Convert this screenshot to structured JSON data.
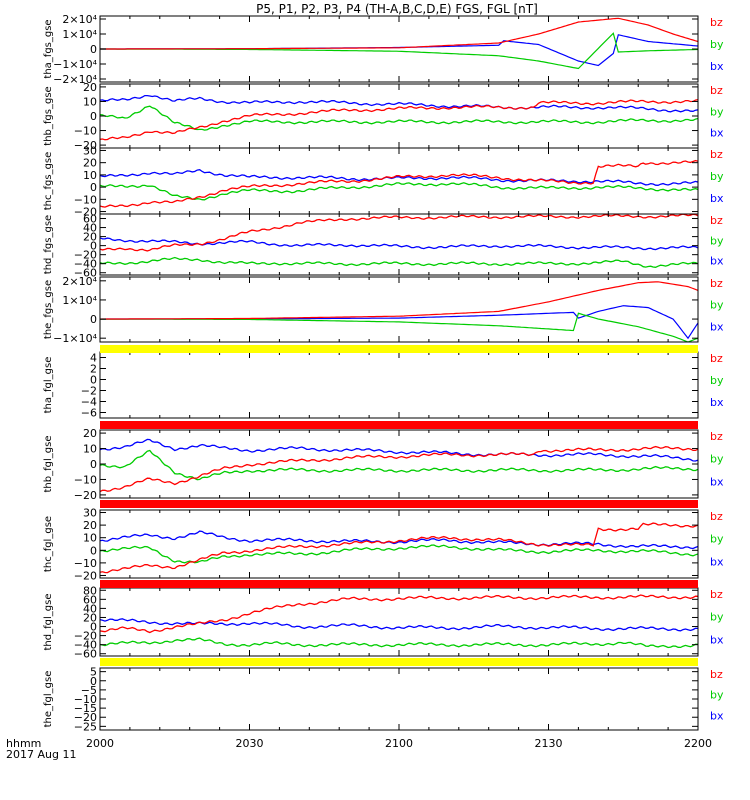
{
  "title": "P5, P1, P2, P3, P4 (TH-A,B,C,D,E) FGS, FGL [nT]",
  "time_axis": {
    "row_label_1": "hhmm",
    "row_label_2": "2017 Aug 11",
    "ticks": [
      "2000",
      "2030",
      "2100",
      "2130",
      "2200"
    ],
    "range_minutes": [
      0,
      120
    ]
  },
  "colors": {
    "bx": "#0000ff",
    "by": "#00cc00",
    "bz": "#ff0000",
    "bar_red": "#ff0000",
    "bar_yellow": "#ffff00",
    "axis": "#000000"
  },
  "chart_data": [
    {
      "type": "line",
      "ylabel": "tha_fgs_gse",
      "yticks": [
        "2×10⁴",
        "1×10⁴",
        "0",
        "−1×10⁴",
        "−2×10⁴"
      ],
      "ytick_values": [
        20000,
        10000,
        0,
        -10000,
        -20000
      ],
      "ylim": [
        -22000,
        22000
      ],
      "legend": [
        "bz",
        "by",
        "bx"
      ],
      "series": [
        {
          "name": "bz",
          "x": [
            0,
            30,
            60,
            80,
            88,
            96,
            104,
            110,
            115,
            120
          ],
          "y": [
            0,
            200,
            800,
            4000,
            10000,
            18000,
            20500,
            16000,
            10000,
            5000
          ]
        },
        {
          "name": "by",
          "x": [
            0,
            30,
            60,
            80,
            88,
            96,
            103,
            104,
            110,
            120
          ],
          "y": [
            0,
            -300,
            -1500,
            -4500,
            -8000,
            -13000,
            10500,
            -2000,
            -1200,
            -300
          ]
        },
        {
          "name": "bx",
          "x": [
            0,
            30,
            60,
            80,
            81,
            88,
            96,
            100,
            103,
            104,
            110,
            120
          ],
          "y": [
            0,
            200,
            1000,
            2500,
            5500,
            3000,
            -8000,
            -11000,
            -3000,
            9500,
            5000,
            2000
          ]
        }
      ]
    },
    {
      "type": "line",
      "ylabel": "thb_fgs_gse",
      "yticks": [
        "20",
        "10",
        "0",
        "−10",
        "−20"
      ],
      "ytick_values": [
        20,
        10,
        0,
        -10,
        -20
      ],
      "ylim": [
        -22,
        22
      ],
      "legend": [
        "bz",
        "by",
        "bx"
      ],
      "series": [
        {
          "name": "bz",
          "x": [
            0,
            5,
            10,
            15,
            20,
            25,
            30,
            40,
            50,
            60,
            70,
            80,
            87,
            88,
            100,
            110,
            120
          ],
          "y": [
            -17,
            -15,
            -10,
            -12,
            -8,
            -3,
            0,
            2,
            4,
            5,
            6,
            6,
            6,
            9,
            9,
            10,
            10
          ]
        },
        {
          "name": "by",
          "x": [
            0,
            5,
            10,
            15,
            20,
            25,
            30,
            40,
            50,
            60,
            70,
            80,
            90,
            100,
            110,
            120
          ],
          "y": [
            0,
            -2,
            8,
            -5,
            -10,
            -6,
            -4,
            -4,
            -4,
            -4,
            -4,
            -4,
            -4,
            -4,
            -3,
            -3
          ]
        },
        {
          "name": "bx",
          "x": [
            0,
            5,
            10,
            15,
            20,
            25,
            30,
            40,
            50,
            60,
            70,
            80,
            90,
            100,
            110,
            120
          ],
          "y": [
            10,
            11,
            15,
            10,
            12,
            10,
            9,
            10,
            9,
            8,
            7,
            6,
            6,
            6,
            5,
            3
          ]
        }
      ]
    },
    {
      "type": "line",
      "ylabel": "thc_fgs_gse",
      "yticks": [
        "30",
        "20",
        "10",
        "0",
        "−10",
        "−20"
      ],
      "ytick_values": [
        30,
        20,
        10,
        0,
        -10,
        -20
      ],
      "ylim": [
        -22,
        32
      ],
      "legend": [
        "bz",
        "by",
        "bx"
      ],
      "series": [
        {
          "name": "bz",
          "x": [
            0,
            5,
            10,
            15,
            20,
            25,
            30,
            40,
            50,
            60,
            70,
            80,
            88,
            95,
            99,
            100,
            108,
            109,
            120
          ],
          "y": [
            -17,
            -15,
            -12,
            -13,
            -8,
            -2,
            0,
            3,
            5,
            8,
            10,
            8,
            5,
            4,
            4,
            17,
            17,
            20,
            20
          ]
        },
        {
          "name": "by",
          "x": [
            0,
            10,
            15,
            20,
            25,
            30,
            40,
            50,
            60,
            70,
            80,
            90,
            100,
            110,
            120
          ],
          "y": [
            0,
            2,
            -8,
            -10,
            -5,
            -3,
            -3,
            0,
            2,
            3,
            0,
            -1,
            0,
            -1,
            -3
          ]
        },
        {
          "name": "bx",
          "x": [
            0,
            10,
            15,
            20,
            25,
            30,
            40,
            50,
            60,
            70,
            80,
            90,
            100,
            108,
            120
          ],
          "y": [
            8,
            12,
            10,
            14,
            10,
            8,
            8,
            7,
            7,
            8,
            6,
            5,
            5,
            3,
            3
          ]
        }
      ]
    },
    {
      "type": "line",
      "ylabel": "thd_fgs_gse",
      "yticks": [
        "60",
        "40",
        "20",
        "0",
        "−20",
        "−40",
        "−60"
      ],
      "ytick_values": [
        60,
        40,
        20,
        0,
        -20,
        -40,
        -60
      ],
      "ylim": [
        -65,
        70
      ],
      "legend": [
        "bz",
        "by",
        "bx"
      ],
      "series": [
        {
          "name": "bz",
          "x": [
            0,
            5,
            10,
            15,
            20,
            25,
            30,
            35,
            40,
            45,
            50,
            60,
            70,
            80,
            90,
            100,
            110,
            120
          ],
          "y": [
            -10,
            -5,
            -10,
            0,
            5,
            15,
            30,
            40,
            50,
            55,
            60,
            62,
            63,
            64,
            64,
            65,
            65,
            66
          ]
        },
        {
          "name": "by",
          "x": [
            0,
            10,
            15,
            20,
            25,
            30,
            35,
            40,
            50,
            60,
            70,
            80,
            90,
            100,
            105,
            110,
            120
          ],
          "y": [
            -40,
            -35,
            -30,
            -30,
            -38,
            -40,
            -38,
            -40,
            -40,
            -40,
            -40,
            -40,
            -40,
            -38,
            -35,
            -45,
            -40
          ]
        },
        {
          "name": "bx",
          "x": [
            0,
            10,
            20,
            30,
            40,
            50,
            60,
            70,
            80,
            90,
            100,
            110,
            120
          ],
          "y": [
            15,
            10,
            5,
            8,
            0,
            2,
            -2,
            -3,
            0,
            -2,
            -4,
            -5,
            -5
          ]
        }
      ]
    },
    {
      "type": "line",
      "ylabel": "the_fgs_gse",
      "yticks": [
        "2×10⁴",
        "1×10⁴",
        "0",
        "−1×10⁴"
      ],
      "ytick_values": [
        20000,
        10000,
        0,
        -10000
      ],
      "ylim": [
        -12000,
        22000
      ],
      "legend": [
        "bz",
        "by",
        "bx"
      ],
      "series": [
        {
          "name": "bz",
          "x": [
            0,
            30,
            60,
            80,
            90,
            100,
            108,
            112,
            118,
            120
          ],
          "y": [
            0,
            300,
            1500,
            4000,
            9000,
            15000,
            19000,
            19500,
            17000,
            15000
          ]
        },
        {
          "name": "by",
          "x": [
            0,
            30,
            60,
            80,
            95,
            96,
            100,
            108,
            115,
            118,
            120
          ],
          "y": [
            0,
            -200,
            -1500,
            -3500,
            -6000,
            3000,
            0,
            -4000,
            -9000,
            -12000,
            -10000
          ]
        },
        {
          "name": "bx",
          "x": [
            0,
            30,
            60,
            80,
            95,
            96,
            100,
            105,
            110,
            115,
            118,
            120
          ],
          "y": [
            0,
            100,
            500,
            2000,
            3500,
            500,
            4000,
            7000,
            6000,
            0,
            -10000,
            -2000
          ]
        }
      ]
    },
    {
      "type": "line",
      "ylabel": "tha_fgl_gse",
      "yticks": [
        "4",
        "2",
        "0",
        "−2",
        "−4",
        "−6"
      ],
      "ytick_values": [
        4,
        2,
        0,
        -2,
        -4,
        -6
      ],
      "ylim": [
        -7,
        5
      ],
      "legend": [
        "bz",
        "by",
        "bx"
      ],
      "series": []
    },
    {
      "type": "line",
      "ylabel": "thb_fgl_gse",
      "yticks": [
        "20",
        "10",
        "0",
        "−10",
        "−20"
      ],
      "ytick_values": [
        20,
        10,
        0,
        -10,
        -20
      ],
      "ylim": [
        -22,
        22
      ],
      "legend": [
        "bz",
        "by",
        "bx"
      ],
      "series": [
        {
          "name": "bz",
          "x": [
            0,
            5,
            10,
            15,
            20,
            25,
            30,
            40,
            50,
            60,
            70,
            80,
            87,
            88,
            100,
            110,
            120
          ],
          "y": [
            -17,
            -15,
            -10,
            -12,
            -8,
            -3,
            0,
            2,
            4,
            5,
            6,
            6,
            6,
            9,
            9,
            10,
            10
          ]
        },
        {
          "name": "by",
          "x": [
            0,
            5,
            10,
            15,
            20,
            25,
            30,
            40,
            50,
            60,
            70,
            80,
            90,
            100,
            110,
            120
          ],
          "y": [
            0,
            -2,
            8,
            -5,
            -10,
            -6,
            -4,
            -4,
            -4,
            -4,
            -4,
            -4,
            -4,
            -4,
            -3,
            -3
          ]
        },
        {
          "name": "bx",
          "x": [
            0,
            5,
            10,
            15,
            20,
            25,
            30,
            40,
            50,
            60,
            70,
            80,
            90,
            100,
            110,
            120
          ],
          "y": [
            10,
            11,
            15,
            10,
            12,
            10,
            9,
            10,
            9,
            8,
            7,
            6,
            6,
            6,
            5,
            3
          ]
        }
      ]
    },
    {
      "type": "line",
      "ylabel": "thc_fgl_gse",
      "yticks": [
        "30",
        "20",
        "10",
        "0",
        "−10",
        "−20"
      ],
      "ytick_values": [
        30,
        20,
        10,
        0,
        -10,
        -20
      ],
      "ylim": [
        -22,
        32
      ],
      "legend": [
        "bz",
        "by",
        "bx"
      ],
      "series": [
        {
          "name": "bz",
          "x": [
            0,
            5,
            10,
            15,
            20,
            25,
            30,
            40,
            50,
            60,
            70,
            80,
            88,
            95,
            99,
            100,
            108,
            109,
            120
          ],
          "y": [
            -17,
            -15,
            -12,
            -13,
            -8,
            -2,
            0,
            3,
            5,
            8,
            10,
            8,
            5,
            4,
            4,
            17,
            17,
            20,
            20
          ]
        },
        {
          "name": "by",
          "x": [
            0,
            10,
            15,
            20,
            25,
            30,
            40,
            50,
            60,
            70,
            80,
            90,
            100,
            110,
            120
          ],
          "y": [
            0,
            2,
            -8,
            -10,
            -5,
            -3,
            -3,
            0,
            2,
            3,
            0,
            -1,
            0,
            -1,
            -3
          ]
        },
        {
          "name": "bx",
          "x": [
            0,
            10,
            15,
            20,
            25,
            30,
            40,
            50,
            60,
            70,
            80,
            90,
            100,
            108,
            120
          ],
          "y": [
            8,
            12,
            10,
            14,
            10,
            8,
            8,
            7,
            7,
            8,
            6,
            5,
            5,
            3,
            3
          ]
        }
      ]
    },
    {
      "type": "line",
      "ylabel": "thd_fgl_gse",
      "yticks": [
        "80",
        "60",
        "40",
        "20",
        "0",
        "−20",
        "−40",
        "−60"
      ],
      "ytick_values": [
        80,
        60,
        40,
        20,
        0,
        -20,
        -40,
        -60
      ],
      "ylim": [
        -65,
        85
      ],
      "legend": [
        "bz",
        "by",
        "bx"
      ],
      "series": [
        {
          "name": "bz",
          "x": [
            0,
            5,
            10,
            15,
            20,
            25,
            30,
            35,
            40,
            45,
            50,
            60,
            70,
            80,
            90,
            100,
            110,
            120
          ],
          "y": [
            -10,
            -5,
            -10,
            0,
            5,
            15,
            30,
            40,
            50,
            55,
            60,
            62,
            63,
            64,
            64,
            65,
            65,
            66
          ]
        },
        {
          "name": "by",
          "x": [
            0,
            10,
            15,
            20,
            25,
            30,
            35,
            40,
            50,
            60,
            70,
            80,
            90,
            100,
            105,
            110,
            120
          ],
          "y": [
            -40,
            -35,
            -30,
            -30,
            -38,
            -40,
            -38,
            -40,
            -40,
            -40,
            -40,
            -40,
            -40,
            -38,
            -35,
            -45,
            -40
          ]
        },
        {
          "name": "bx",
          "x": [
            0,
            10,
            20,
            30,
            40,
            50,
            60,
            70,
            80,
            90,
            100,
            110,
            120
          ],
          "y": [
            15,
            10,
            5,
            8,
            0,
            2,
            -2,
            -3,
            0,
            -2,
            -4,
            -5,
            -5
          ]
        }
      ]
    },
    {
      "type": "line",
      "ylabel": "the_fgl_gse",
      "yticks": [
        "5",
        "0",
        "−5",
        "−10",
        "−15",
        "−20",
        "−25"
      ],
      "ytick_values": [
        5,
        0,
        -5,
        -10,
        -15,
        -20,
        -25
      ],
      "ylim": [
        -27,
        7
      ],
      "legend": [
        "bz",
        "by",
        "bx"
      ],
      "series": []
    }
  ]
}
